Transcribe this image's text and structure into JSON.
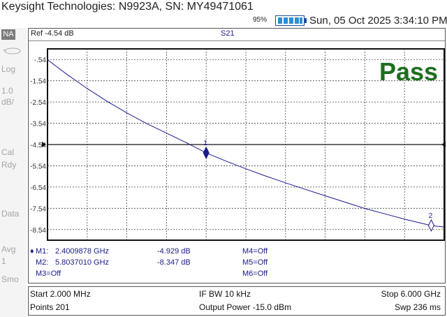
{
  "title": "Keysight Technologies: N9923A, SN: MY49471061",
  "status": {
    "battery_percent": "95%",
    "datetime": "Sun, 05 Oct 2025 3:34:10 PM"
  },
  "side_panel": {
    "mode": "NA",
    "format": "Log",
    "scale_value": "1.0",
    "scale_unit": "dB/",
    "cal_line1": "Cal",
    "cal_line2": "Rdy",
    "data": "Data",
    "avg_line1": "Avg",
    "avg_line2": "1",
    "smo": "Smo",
    "icon": "sweep-icon"
  },
  "plot": {
    "ref": "Ref -4.54 dB",
    "trace": "S21",
    "pass": "Pass",
    "trace_color": "#1a1a8c",
    "pass_color": "#1e6e1e"
  },
  "chart_data": {
    "type": "line",
    "title": "S21",
    "xlabel": "",
    "ylabel": "",
    "xlim": [
      2.0,
      6000.0
    ],
    "ylim": [
      -9.04,
      -0.04
    ],
    "x_unit": "MHz",
    "y_unit": "dB",
    "y_ticks": [
      "-.54",
      "-1.54",
      "-2.54",
      "-3.54",
      "-4.54",
      "-5.54",
      "-6.54",
      "-7.54",
      "-8.54"
    ],
    "grid": true,
    "series": [
      {
        "name": "S21",
        "x": [
          2.0,
          300,
          600,
          900,
          1200,
          1500,
          1800,
          2100,
          2400,
          2700,
          3000,
          3300,
          3600,
          3900,
          4200,
          4500,
          4800,
          5100,
          5400,
          5800,
          6000
        ],
        "values": [
          -0.55,
          -1.25,
          -1.9,
          -2.5,
          -3.05,
          -3.55,
          -4.0,
          -4.45,
          -4.93,
          -5.32,
          -5.68,
          -6.02,
          -6.34,
          -6.65,
          -6.95,
          -7.25,
          -7.55,
          -7.8,
          -8.05,
          -8.35,
          -8.42
        ]
      }
    ],
    "markers": [
      {
        "id": "1",
        "x": 2400.9878,
        "y": -4.929
      },
      {
        "id": "2",
        "x": 5803.701,
        "y": -8.347
      }
    ]
  },
  "marker_table": {
    "m1_label": "M1:",
    "m1_freq": "2.4009878 GHz",
    "m1_val": "-4.929 dB",
    "m2_label": "M2:",
    "m2_freq": "5.8037010 GHz",
    "m2_val": "-8.347 dB",
    "m3": "M3=Off",
    "m4": "M4=Off",
    "m5": "M5=Off",
    "m6": "M6=Off"
  },
  "footer": {
    "start": "Start 2.000 MHz",
    "points": "Points 201",
    "ifbw": "IF BW 10 kHz",
    "power": "Output Power -15.0 dBm",
    "stop": "Stop 6.000 GHz",
    "sweep": "Swp 236 ms"
  }
}
